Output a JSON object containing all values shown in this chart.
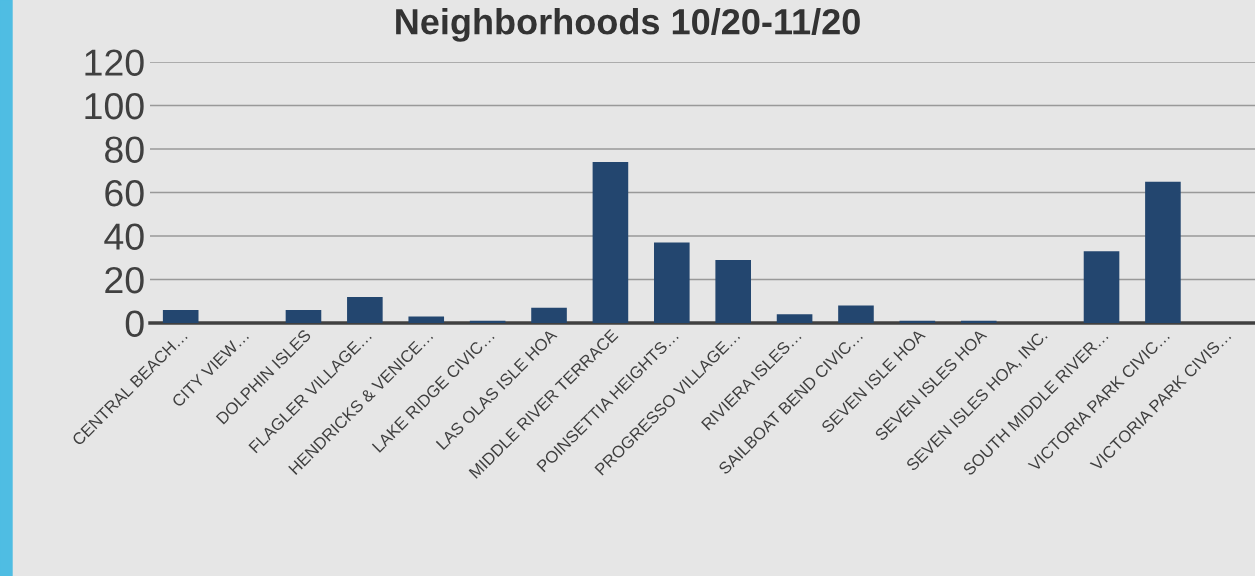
{
  "chart_data": {
    "type": "bar",
    "title": "Neighborhoods 10/20-11/20",
    "categories": [
      "CENTRAL BEACH…",
      "CITY VIEW…",
      "DOLPHIN ISLES",
      "FLAGLER VILLAGE…",
      "HENDRICKS & VENICE…",
      "LAKE RIDGE CIVIC…",
      "LAS OLAS ISLE HOA",
      "MIDDLE RIVER TERRACE",
      "POINSETTIA HEIGHTS…",
      "PROGRESSO VILLAGE…",
      "RIVIERA ISLES…",
      "SAILBOAT BEND CIVIC…",
      "SEVEN ISLE HOA",
      "SEVEN ISLES HOA",
      "SEVEN ISLES HOA, INC.",
      "SOUTH MIDDLE RIVER…",
      "VICTORIA PARK CIVIC…",
      "VICTORIA PARK CIVIS…"
    ],
    "values": [
      6,
      0,
      6,
      12,
      3,
      1,
      7,
      74,
      37,
      29,
      4,
      8,
      1,
      1,
      0,
      33,
      65,
      0
    ],
    "color": "#23466f",
    "ylim": [
      0,
      120
    ],
    "yticks": [
      0,
      20,
      40,
      60,
      80,
      100,
      120
    ],
    "grid": "y",
    "legend": false
  }
}
